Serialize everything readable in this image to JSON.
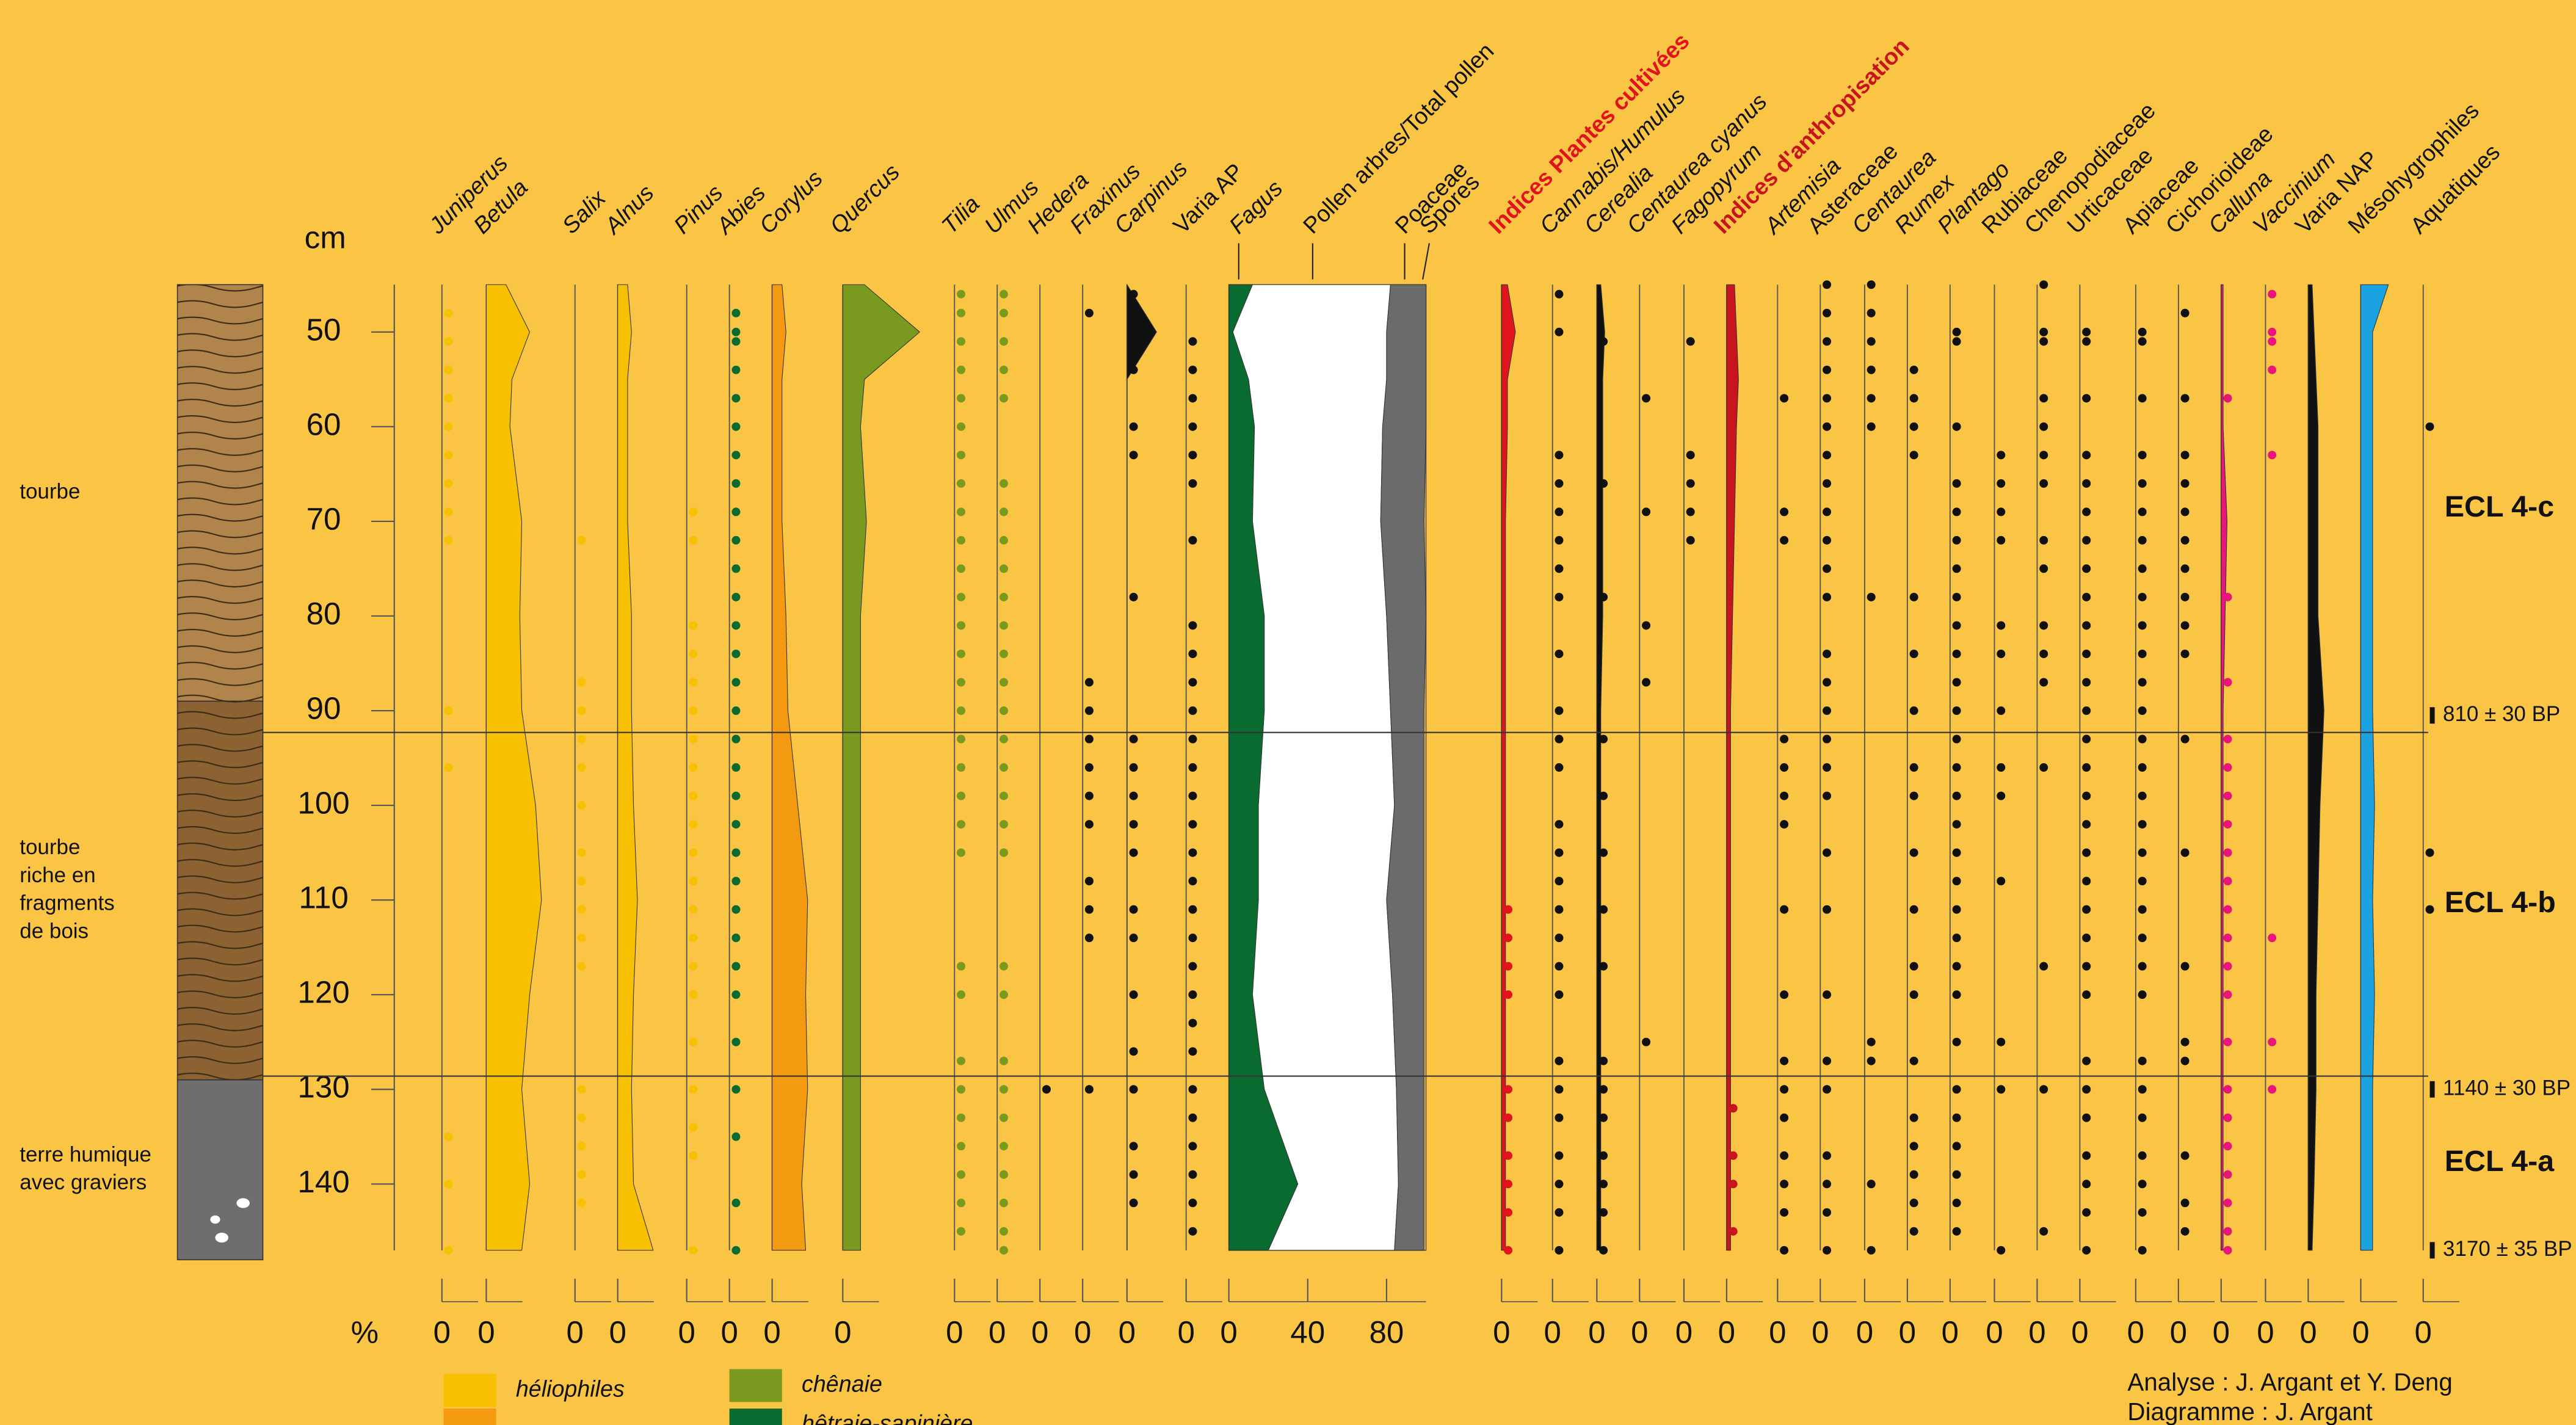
{
  "chart_data": {
    "type": "pollen",
    "y_label": "cm",
    "x_label": "%",
    "ylim": [
      45,
      147
    ],
    "yticks": [
      50,
      60,
      70,
      80,
      90,
      100,
      110,
      120,
      130,
      140
    ],
    "xticks": [
      0
    ],
    "depths": [
      45,
      50,
      55,
      60,
      70,
      80,
      90,
      100,
      110,
      120,
      130,
      140,
      147
    ],
    "trees": [
      {
        "name": "Juniperus",
        "color": "#f7c000",
        "italic": true,
        "present": [
          48,
          51,
          54,
          57,
          60,
          63,
          66,
          69,
          72,
          90,
          96,
          135,
          140,
          147
        ]
      },
      {
        "name": "Betula",
        "color": "#f7c000",
        "italic": true,
        "values": [
          10,
          22,
          13,
          12,
          18,
          17,
          18,
          25,
          28,
          22,
          18,
          22,
          18
        ]
      },
      {
        "name": "Salix",
        "color": "#f7c000",
        "italic": true,
        "present": [
          72,
          87,
          90,
          93,
          96,
          100,
          105,
          108,
          111,
          114,
          117,
          130,
          133,
          136,
          139,
          142
        ]
      },
      {
        "name": "Alnus",
        "color": "#f7c000",
        "italic": true,
        "values": [
          5,
          7,
          5,
          5,
          5,
          7,
          7,
          8,
          10,
          8,
          7,
          8,
          18
        ]
      },
      {
        "name": "Pinus",
        "color": "#f7c000",
        "italic": true,
        "present": [
          69,
          72,
          81,
          84,
          87,
          90,
          93,
          96,
          99,
          102,
          105,
          108,
          111,
          114,
          117,
          120,
          125,
          130,
          134,
          137,
          147
        ]
      },
      {
        "name": "Abies",
        "color": "#0a6b30",
        "italic": true,
        "present": [
          48,
          50,
          51,
          54,
          57,
          60,
          63,
          66,
          69,
          72,
          75,
          78,
          81,
          84,
          87,
          90,
          93,
          96,
          99,
          102,
          105,
          108,
          111,
          114,
          117,
          120,
          125,
          130,
          135,
          142,
          147
        ]
      },
      {
        "name": "Corylus",
        "color": "#f39a10",
        "italic": true,
        "values": [
          5,
          7,
          5,
          5,
          5,
          7,
          8,
          13,
          18,
          17,
          18,
          15,
          17
        ]
      },
      {
        "name": "Quercus",
        "color": "#7a9a1f",
        "italic": true,
        "values": [
          11,
          39,
          11,
          9,
          12,
          9,
          9,
          9,
          9,
          9,
          9,
          9,
          9
        ]
      },
      {
        "name": "Tilia",
        "color": "#7a9a1f",
        "italic": true,
        "present": [
          46,
          48,
          51,
          54,
          57,
          60,
          63,
          66,
          69,
          72,
          75,
          78,
          81,
          84,
          87,
          90,
          93,
          96,
          99,
          102,
          105,
          117,
          120,
          127,
          130,
          133,
          136,
          139,
          142,
          145
        ]
      },
      {
        "name": "Ulmus",
        "color": "#7a9a1f",
        "italic": true,
        "present": [
          46,
          48,
          51,
          54,
          57,
          66,
          69,
          72,
          75,
          78,
          81,
          84,
          87,
          90,
          93,
          96,
          99,
          102,
          105,
          117,
          120,
          127,
          130,
          133,
          136,
          139,
          142,
          145,
          147
        ]
      },
      {
        "name": "Hedera",
        "color": "#111111",
        "italic": true,
        "present": [
          130
        ]
      },
      {
        "name": "Fraxinus",
        "color": "#111111",
        "italic": true,
        "present": [
          48,
          87,
          90,
          93,
          96,
          99,
          102,
          108,
          111,
          114,
          130
        ]
      },
      {
        "name": "Carpinus",
        "color": "#111111",
        "italic": true,
        "values": [
          0,
          15,
          0,
          0,
          0,
          0,
          0,
          0,
          0,
          0,
          0,
          0,
          0
        ],
        "present": [
          46,
          54,
          60,
          63,
          78,
          93,
          96,
          99,
          102,
          105,
          111,
          114,
          120,
          126,
          130,
          136,
          139,
          142
        ]
      },
      {
        "name": "Varia AP",
        "color": "#111111",
        "italic": false,
        "present": [
          51,
          54,
          57,
          60,
          63,
          66,
          72,
          81,
          84,
          87,
          90,
          93,
          96,
          99,
          102,
          105,
          108,
          111,
          114,
          117,
          120,
          123,
          126,
          130,
          133,
          136,
          139,
          142,
          145
        ]
      }
    ],
    "pollen_sum": {
      "fagus": {
        "name": "Fagus",
        "color": "#0a6b30",
        "values": [
          12,
          2,
          10,
          13,
          12,
          18,
          18,
          15,
          15,
          12,
          18,
          35,
          20
        ]
      },
      "ap": {
        "name": "Pollen arbres/Total pollen",
        "color": "#ffffff",
        "values": [
          82,
          80,
          80,
          78,
          77,
          80,
          82,
          84,
          80,
          83,
          85,
          86,
          84
        ]
      },
      "poaceae": {
        "name": "Poaceae",
        "color": "#6b6b6b",
        "values": [
          18,
          20,
          20,
          22,
          22,
          20,
          17,
          15,
          19,
          16,
          14,
          13,
          15
        ]
      },
      "spores": {
        "name": "Spores"
      },
      "xticks": [
        0,
        40,
        80
      ]
    },
    "herbs": [
      {
        "name": "Indices Plantes cultivées",
        "color": "#e0141c",
        "italic": false,
        "bold": true,
        "values": [
          3,
          7,
          3,
          3,
          2,
          2,
          2,
          2,
          2,
          2,
          2,
          2,
          2
        ],
        "present": [
          111,
          114,
          117,
          120,
          130,
          133,
          137,
          140,
          143,
          147
        ]
      },
      {
        "name": "Cannabis/Humulus",
        "color": "#111111",
        "italic": true,
        "present": [
          46,
          50,
          63,
          66,
          69,
          72,
          75,
          78,
          84,
          90,
          93,
          96,
          102,
          105,
          108,
          111,
          114,
          117,
          120,
          127,
          130,
          133,
          137,
          140,
          143,
          147
        ]
      },
      {
        "name": "Cerealia",
        "color": "#111111",
        "italic": true,
        "values": [
          2,
          4,
          3,
          3,
          3,
          3,
          2,
          2,
          2,
          2,
          2,
          2,
          2
        ],
        "present": [
          51,
          66,
          78,
          93,
          99,
          105,
          111,
          117,
          127,
          130,
          133,
          137,
          140,
          143,
          147
        ]
      },
      {
        "name": "Centaurea cyanus",
        "color": "#111111",
        "italic": true,
        "present": [
          57,
          69,
          81,
          87,
          125
        ]
      },
      {
        "name": "Fagopyrum",
        "color": "#111111",
        "italic": true,
        "present": [
          51,
          63,
          66,
          69,
          72
        ]
      },
      {
        "name": "Indices d'anthropisation",
        "color": "#c8141c",
        "italic": false,
        "bold": true,
        "values": [
          4,
          5,
          6,
          5,
          4,
          3,
          2,
          2,
          2,
          2,
          2,
          2,
          2
        ],
        "present": [
          132,
          137,
          140,
          145
        ]
      },
      {
        "name": "Artemisia",
        "color": "#111111",
        "italic": true,
        "present": [
          57,
          69,
          72,
          93,
          96,
          99,
          102,
          111,
          120,
          127,
          130,
          133,
          137,
          140,
          143,
          147
        ]
      },
      {
        "name": "Asteraceae",
        "color": "#111111",
        "italic": false,
        "present": [
          45,
          48,
          51,
          54,
          57,
          60,
          63,
          66,
          69,
          72,
          75,
          78,
          84,
          87,
          90,
          93,
          96,
          99,
          105,
          111,
          120,
          127,
          130,
          137,
          140,
          143,
          147
        ]
      },
      {
        "name": "Centaurea",
        "color": "#111111",
        "italic": true,
        "present": [
          45,
          48,
          51,
          54,
          57,
          60,
          78,
          125,
          127,
          140,
          147
        ]
      },
      {
        "name": "Rumex",
        "color": "#111111",
        "italic": true,
        "present": [
          54,
          57,
          60,
          63,
          78,
          84,
          90,
          96,
          99,
          105,
          111,
          117,
          120,
          127,
          133,
          136,
          139,
          142,
          145
        ]
      },
      {
        "name": "Plantago",
        "color": "#111111",
        "italic": true,
        "present": [
          50,
          51,
          60,
          66,
          69,
          72,
          75,
          78,
          81,
          84,
          87,
          90,
          93,
          96,
          99,
          102,
          105,
          108,
          111,
          114,
          117,
          120,
          125,
          130,
          133,
          136,
          139,
          142,
          145
        ]
      },
      {
        "name": "Rubiaceae",
        "color": "#111111",
        "italic": false,
        "present": [
          63,
          66,
          69,
          72,
          81,
          84,
          90,
          96,
          99,
          108,
          125,
          130,
          147
        ]
      },
      {
        "name": "Chenopodiaceae",
        "color": "#111111",
        "italic": false,
        "present": [
          45,
          50,
          51,
          57,
          60,
          63,
          66,
          72,
          75,
          81,
          84,
          87,
          96,
          117,
          130,
          145
        ]
      },
      {
        "name": "Urticaceae",
        "color": "#111111",
        "italic": false,
        "present": [
          50,
          51,
          57,
          63,
          66,
          69,
          72,
          75,
          78,
          81,
          84,
          87,
          90,
          93,
          96,
          99,
          102,
          105,
          108,
          111,
          114,
          117,
          120,
          127,
          130,
          133,
          137,
          140,
          143,
          147
        ]
      },
      {
        "name": "Apiaceae",
        "color": "#111111",
        "italic": false,
        "present": [
          50,
          51,
          57,
          63,
          66,
          69,
          72,
          75,
          78,
          81,
          84,
          87,
          90,
          93,
          96,
          99,
          102,
          105,
          108,
          111,
          114,
          117,
          120,
          127,
          130,
          133,
          137,
          140,
          143,
          147
        ]
      },
      {
        "name": "Cichorioideae",
        "color": "#111111",
        "italic": false,
        "present": [
          48,
          57,
          63,
          66,
          69,
          72,
          75,
          78,
          81,
          84,
          93,
          105,
          117,
          125,
          127,
          137,
          142,
          145
        ]
      },
      {
        "name": "Calluna",
        "color": "#e8157a",
        "italic": true,
        "values": [
          1,
          1,
          1,
          1,
          3,
          2,
          1,
          1,
          1,
          1,
          1,
          1,
          1
        ],
        "present": [
          57,
          78,
          87,
          93,
          96,
          99,
          102,
          105,
          108,
          111,
          114,
          117,
          120,
          125,
          130,
          133,
          136,
          139,
          142,
          145,
          147
        ]
      },
      {
        "name": "Vaccinium",
        "color": "#e8157a",
        "italic": true,
        "present": [
          46,
          50,
          51,
          54,
          63,
          114,
          125,
          130
        ]
      },
      {
        "name": "Varia NAP",
        "color": "#111111",
        "italic": false,
        "values": [
          2,
          3,
          4,
          5,
          5,
          5,
          8,
          6,
          5,
          4,
          4,
          3,
          2
        ]
      },
      {
        "name": "Mésohygrophiles",
        "color": "#1aa3e0",
        "italic": false,
        "values": [
          14,
          6,
          6,
          6,
          6,
          6,
          6,
          7,
          6,
          7,
          6,
          6,
          6
        ]
      },
      {
        "name": "Aquatiques",
        "color": "#111111",
        "italic": false,
        "present": [
          60,
          105,
          111
        ]
      }
    ],
    "zone_boundaries": [
      92.3,
      128.6
    ],
    "zones": [
      "ECL 4-c",
      "ECL 4-b",
      "ECL 4-a"
    ],
    "dates": [
      {
        "label": "810 ± 30 BP",
        "depth": 90.5
      },
      {
        "label": "1140 ± 30 BP",
        "depth": 130
      },
      {
        "label": "3170 ± 35 BP",
        "depth": 147
      }
    ],
    "lithology": [
      {
        "lines": [
          "tourbe"
        ],
        "top": 45,
        "bottom": 89,
        "color": "#b0844a",
        "pattern": "wave"
      },
      {
        "lines": [
          "tourbe",
          "riche en",
          "fragments",
          "de bois"
        ],
        "top": 89,
        "bottom": 129,
        "color": "#8c6232",
        "pattern": "wave"
      },
      {
        "lines": [
          "terre humique",
          "avec graviers"
        ],
        "top": 129,
        "bottom": 148,
        "color": "#6e6e6e",
        "pattern": "gravel"
      }
    ],
    "legend": [
      {
        "label": "héliophiles",
        "color": "#f7c000"
      },
      {
        "label": null,
        "color": "#f39a10"
      },
      {
        "label": "chênaie",
        "color": "#7a9a1f"
      },
      {
        "label": "hêtraie-sapinière",
        "color": "#0a6b30"
      }
    ],
    "credits": [
      "Analyse : J. Argant et Y. Deng",
      "Diagramme : J. Argant"
    ]
  }
}
